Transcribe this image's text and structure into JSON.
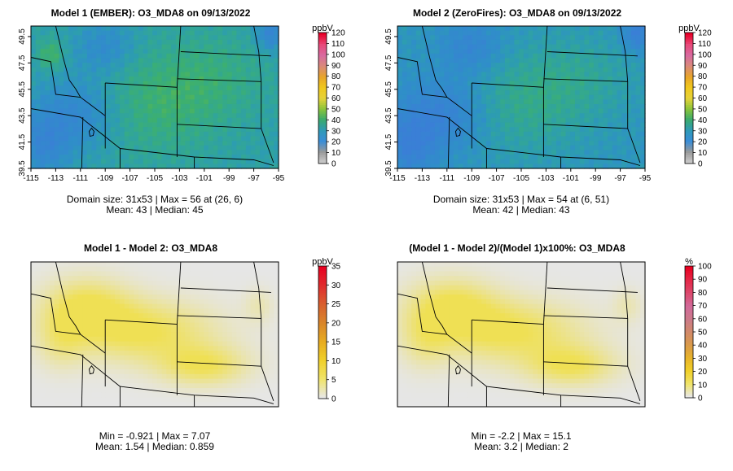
{
  "chart_data": [
    {
      "id": "p1",
      "type": "heatmap",
      "title": "Model 1 (EMBER): O3_MDA8 on 09/13/2022",
      "xticks": [
        "-115",
        "-113",
        "-111",
        "-109",
        "-107",
        "-105",
        "-103",
        "-101",
        "-99",
        "-97",
        "-95"
      ],
      "yticks": [
        "39.5",
        "41.5",
        "43.5",
        "45.5",
        "47.5",
        "49.5"
      ],
      "xlim": [
        -115,
        -95
      ],
      "ylim": [
        39.5,
        50.3
      ],
      "domain_size": "31x53",
      "max": 56,
      "max_at": "(26, 6)",
      "mean": 43,
      "median": 45,
      "stats_line1": "Domain size: 31x53 | Max = 56 at (26, 6)",
      "stats_line2": "Mean: 43 |  Median: 45",
      "legend": {
        "unit": "ppbV",
        "ticks": [
          "120",
          "110",
          "100",
          "90",
          "80",
          "70",
          "60",
          "50",
          "40",
          "30",
          "20",
          "10",
          "0"
        ],
        "colors": [
          "#cccccc",
          "#999999",
          "#3a8ed8",
          "#2f9ab8",
          "#3aaa6e",
          "#8ac43a",
          "#e6d23a",
          "#f0c81e",
          "#e8a52a",
          "#d98a7a",
          "#d86aa0",
          "#e84a7a",
          "#e80028"
        ]
      },
      "field_center": 43
    },
    {
      "id": "p2",
      "type": "heatmap",
      "title": "Model 2 (ZeroFires): O3_MDA8 on 09/13/2022",
      "xticks": [
        "-115",
        "-113",
        "-111",
        "-109",
        "-107",
        "-105",
        "-103",
        "-101",
        "-99",
        "-97",
        "-95"
      ],
      "yticks": [
        "39.5",
        "41.5",
        "43.5",
        "45.5",
        "47.5",
        "49.5"
      ],
      "xlim": [
        -115,
        -95
      ],
      "ylim": [
        39.5,
        50.3
      ],
      "domain_size": "31x53",
      "max": 54,
      "max_at": "(6, 51)",
      "mean": 42,
      "median": 43,
      "stats_line1": "Domain size: 31x53 | Max = 54 at (6, 51)",
      "stats_line2": "Mean: 42 |  Median: 43",
      "legend": {
        "unit": "ppbV",
        "ticks": [
          "120",
          "110",
          "100",
          "90",
          "80",
          "70",
          "60",
          "50",
          "40",
          "30",
          "20",
          "10",
          "0"
        ],
        "colors": [
          "#cccccc",
          "#999999",
          "#3a8ed8",
          "#2f9ab8",
          "#3aaa6e",
          "#8ac43a",
          "#e6d23a",
          "#f0c81e",
          "#e8a52a",
          "#d98a7a",
          "#d86aa0",
          "#e84a7a",
          "#e80028"
        ]
      },
      "field_center": 42
    },
    {
      "id": "p3",
      "type": "heatmap",
      "title": "Model 1 - Model 2: O3_MDA8",
      "xlim": [
        -115,
        -95
      ],
      "ylim": [
        39.5,
        50.3
      ],
      "min": -0.921,
      "max": 7.07,
      "mean": 1.54,
      "median": 0.859,
      "stats_line1": "Min = -0.921 | Max = 7.07",
      "stats_line2": "Mean: 1.54 |  Median: 0.859",
      "legend": {
        "unit": "ppbV",
        "ticks": [
          "35",
          "30",
          "25",
          "20",
          "15",
          "10",
          "5",
          "0"
        ],
        "colors": [
          "#e8e8e8",
          "#f0e46a",
          "#f0d02a",
          "#e8ac20",
          "#d9862a",
          "#d8602e",
          "#e02e2e",
          "#e80020"
        ]
      }
    },
    {
      "id": "p4",
      "type": "heatmap",
      "title": "(Model 1 - Model 2)/(Model 1)x100%: O3_MDA8",
      "xlim": [
        -115,
        -95
      ],
      "ylim": [
        39.5,
        50.3
      ],
      "min": -2.2,
      "max": 15.1,
      "mean": 3.2,
      "median": 2,
      "stats_line1": "Min = -2.2 | Max = 15.1",
      "stats_line2": "Mean: 3.2 |  Median: 2",
      "legend": {
        "unit": "%",
        "ticks": [
          "100",
          "90",
          "80",
          "70",
          "60",
          "50",
          "40",
          "30",
          "20",
          "10",
          "0"
        ],
        "colors": [
          "#e8e8e8",
          "#f0e46a",
          "#f0d02a",
          "#e8b42a",
          "#d99a4a",
          "#d28a6a",
          "#cc7a8a",
          "#d26a9a",
          "#dc4a6e",
          "#e42848",
          "#e80020"
        ]
      }
    }
  ]
}
